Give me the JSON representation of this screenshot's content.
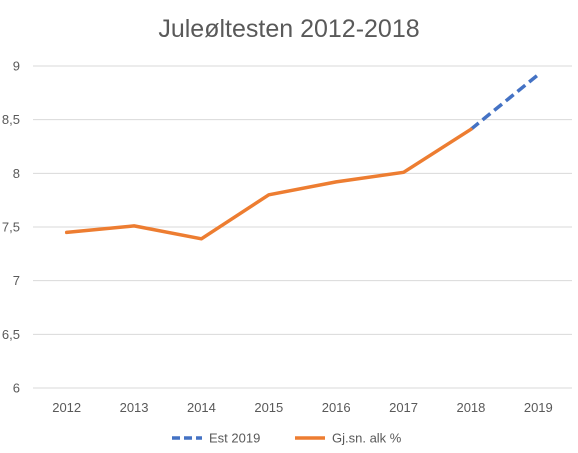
{
  "chart_data": {
    "type": "line",
    "title": "Juleøltesten 2012-2018",
    "xlabel": "",
    "ylabel": "",
    "categories": [
      "2012",
      "2013",
      "2014",
      "2015",
      "2016",
      "2017",
      "2018",
      "2019"
    ],
    "ylim": [
      6,
      9
    ],
    "yticks": [
      "6",
      "6,5",
      "7",
      "7,5",
      "8",
      "8,5",
      "9"
    ],
    "ytick_values": [
      6,
      6.5,
      7,
      7.5,
      8,
      8.5,
      9
    ],
    "grid": true,
    "legend_position": "bottom",
    "series": [
      {
        "name": "Est 2019",
        "color": "#4472c4",
        "dash": "dashed",
        "values": [
          null,
          null,
          null,
          null,
          null,
          null,
          8.41,
          8.92
        ]
      },
      {
        "name": "Gj.sn. alk %",
        "color": "#ed7d31",
        "dash": "solid",
        "values": [
          7.45,
          7.51,
          7.39,
          7.8,
          7.92,
          8.01,
          8.41,
          null
        ]
      }
    ]
  }
}
